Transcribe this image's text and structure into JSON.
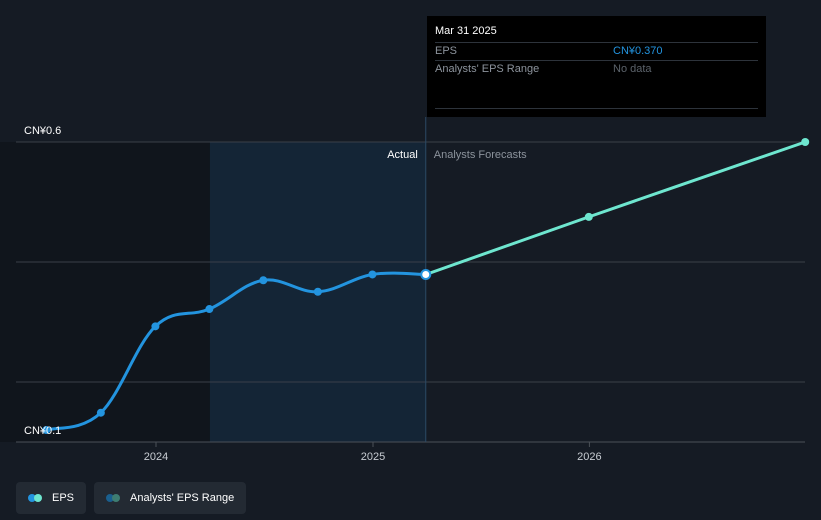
{
  "chart_data": {
    "type": "line",
    "y_tick_labels": [
      "CN¥0.6",
      "CN¥0.1"
    ],
    "ylim": [
      0.1,
      0.6
    ],
    "x_tick_labels": [
      "2024",
      "2025",
      "2026"
    ],
    "divider_labels": {
      "actual": "Actual",
      "forecast": "Analysts Forecasts"
    },
    "series": [
      {
        "name": "EPS",
        "kind": "actual",
        "color": "#2394df",
        "x": [
          "2023-06-30",
          "2023-09-30",
          "2023-12-31",
          "2024-03-31",
          "2024-06-30",
          "2024-09-30",
          "2024-12-31",
          "2025-03-31"
        ],
        "values": [
          0.1,
          0.13,
          0.28,
          0.31,
          0.36,
          0.34,
          0.37,
          0.37
        ]
      },
      {
        "name": "Analysts Forecasts",
        "kind": "forecast",
        "color": "#6ee6cf",
        "x": [
          "2025-03-31",
          "2025-12-31",
          "2026-12-31"
        ],
        "values": [
          0.37,
          0.47,
          0.6
        ]
      }
    ],
    "highlight_point": {
      "x": "2025-03-31",
      "value": 0.37
    },
    "grid": true
  },
  "tooltip": {
    "date": "Mar 31 2025",
    "rows": [
      {
        "label": "EPS",
        "value": "CN¥0.370"
      },
      {
        "label": "Analysts' EPS Range",
        "value": "No data"
      }
    ]
  },
  "legend": [
    {
      "label": "EPS",
      "colors": [
        "#2394df",
        "#6ee6cf"
      ]
    },
    {
      "label": "Analysts' EPS Range",
      "colors": [
        "#1a5f8e",
        "#3e7d72"
      ]
    }
  ],
  "colors": {
    "background": "#151b24",
    "past_band": "#10151c",
    "actual_band": "#142536",
    "grid": "#3a4049",
    "axis_text": "#ffffff"
  }
}
